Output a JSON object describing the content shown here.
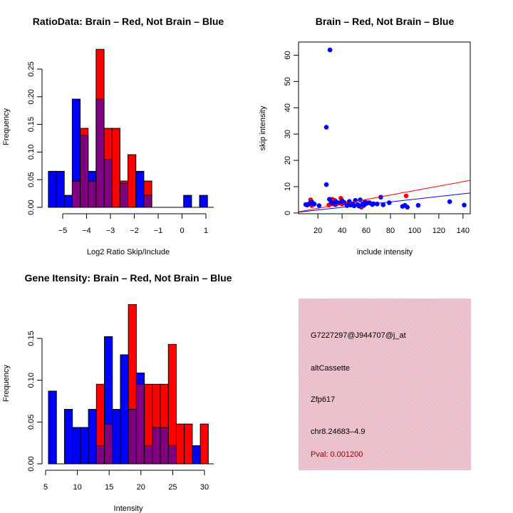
{
  "colors": {
    "brain": "#ff0000",
    "not_brain": "#0000ff",
    "overlap": "#800080",
    "panel": "#ecbfcb",
    "pval": "#8b0000"
  },
  "chart_data": [
    {
      "id": "ratio_hist",
      "type": "bar",
      "title": "RatioData: Brain – Red, Not Brain – Blue",
      "xlabel": "Log2 Ratio Skip/Include",
      "ylabel": "Frequency",
      "xlim": [
        -5.6,
        1.07
      ],
      "ylim": [
        0,
        0.28
      ],
      "xticks": [
        -5,
        -4,
        -3,
        -2,
        -1,
        0,
        1
      ],
      "xtick_labels": [
        "−5",
        "−4",
        "−3",
        "−2",
        "−1",
        "0",
        "1"
      ],
      "yticks": [
        0.0,
        0.05,
        0.1,
        0.15,
        0.2,
        0.25
      ],
      "ytick_labels": [
        "0.00",
        "0.05",
        "0.10",
        "0.15",
        "0.20",
        "0.25"
      ],
      "bin_start": -5.6,
      "bin_width": 0.3333,
      "series": [
        {
          "name": "Not Brain (Blue)",
          "values": [
            0.0652,
            0.0652,
            0.0217,
            0.1957,
            0.1304,
            0.0652,
            0.1957,
            0.087,
            0.0,
            0.0435,
            0.0,
            0.0652,
            0.0217,
            0.0,
            0.0,
            0.0,
            0.0,
            0.0217,
            0.0,
            0.0217
          ]
        },
        {
          "name": "Brain (Red)",
          "values": [
            0.0,
            0.0,
            0.0,
            0.0476,
            0.1429,
            0.0476,
            0.2857,
            0.1429,
            0.1429,
            0.0476,
            0.0952,
            0.0,
            0.0476,
            0.0,
            0.0,
            0.0,
            0.0,
            0.0,
            0.0,
            0.0
          ]
        }
      ],
      "grid": false
    },
    {
      "id": "scatter",
      "type": "scatter",
      "title": "Brain – Red, Not Brain – Blue",
      "xlabel": "include intensity",
      "ylabel": "skip intensity",
      "xlim": [
        4,
        146
      ],
      "ylim": [
        -0.3,
        65
      ],
      "xticks": [
        20,
        40,
        60,
        80,
        100,
        120,
        140
      ],
      "yticks": [
        0,
        10,
        20,
        30,
        40,
        50,
        60
      ],
      "series": [
        {
          "name": "Not Brain (Blue)",
          "points": [
            [
              10,
              3.2
            ],
            [
              11,
              3.0
            ],
            [
              12,
              3.3
            ],
            [
              13,
              3.5
            ],
            [
              14,
              3.8
            ],
            [
              15,
              4.2
            ],
            [
              16,
              3.6
            ],
            [
              17,
              3.4
            ],
            [
              21,
              2.8
            ],
            [
              27,
              10.8
            ],
            [
              27,
              32.6
            ],
            [
              30,
              62
            ],
            [
              29.5,
              5.2
            ],
            [
              31,
              4.0
            ],
            [
              33,
              3.5
            ],
            [
              34,
              3.2
            ],
            [
              35,
              4.3
            ],
            [
              38,
              3.8
            ],
            [
              40,
              4.6
            ],
            [
              41,
              4.2
            ],
            [
              42,
              3.9
            ],
            [
              44,
              2.8
            ],
            [
              45,
              3.2
            ],
            [
              46,
              4.4
            ],
            [
              47,
              3.0
            ],
            [
              49,
              3.5
            ],
            [
              50,
              2.7
            ],
            [
              51,
              4.8
            ],
            [
              53,
              3.2
            ],
            [
              54,
              2.6
            ],
            [
              55,
              5.0
            ],
            [
              57,
              3.4
            ],
            [
              58,
              2.9
            ],
            [
              59,
              4.2
            ],
            [
              60,
              3.6
            ],
            [
              63,
              3.8
            ],
            [
              65,
              3.2
            ],
            [
              66,
              3.5
            ],
            [
              69,
              3.4
            ],
            [
              72,
              6.0
            ],
            [
              74,
              3.1
            ],
            [
              79,
              3.9
            ],
            [
              90,
              2.5
            ],
            [
              92,
              2.9
            ],
            [
              94,
              2.2
            ],
            [
              103,
              2.9
            ],
            [
              129,
              4.3
            ],
            [
              141,
              3.0
            ]
          ]
        },
        {
          "name": "Brain (Red)",
          "points": [
            [
              14,
              5.0
            ],
            [
              15,
              2.8
            ],
            [
              29,
              3.0
            ],
            [
              31,
              3.5
            ],
            [
              32,
              5.2
            ],
            [
              34,
              4.8
            ],
            [
              35,
              3.2
            ],
            [
              36,
              4.0
            ],
            [
              39,
              5.6
            ],
            [
              40,
              3.4
            ],
            [
              56,
              2.2
            ],
            [
              62,
              4.0
            ],
            [
              93,
              6.5
            ]
          ]
        }
      ],
      "fit_lines": [
        {
          "name": "Brain fit (Red)",
          "from": [
            4,
            0.4
          ],
          "to": [
            146,
            12.4
          ]
        },
        {
          "name": "Not Brain fit (Blue)",
          "from": [
            4,
            0.3
          ],
          "to": [
            146,
            7.6
          ]
        }
      ],
      "grid": false
    },
    {
      "id": "intensity_hist",
      "type": "bar",
      "title": "Gene Itensity: Brain – Red, Not Brain – Blue",
      "xlabel": "Intensity",
      "ylabel": "Frequency",
      "xlim": [
        5.45,
        30.6
      ],
      "ylim": [
        0,
        0.2
      ],
      "xticks": [
        5,
        10,
        15,
        20,
        25,
        30
      ],
      "xtick_labels": [
        "5",
        "10",
        "15",
        "20",
        "25",
        "30"
      ],
      "yticks": [
        0.0,
        0.05,
        0.1,
        0.15
      ],
      "ytick_labels": [
        "0.00",
        "0.05",
        "0.10",
        "0.15"
      ],
      "bin_start": 5.45,
      "bin_width": 1.2575,
      "series": [
        {
          "name": "Not Brain (Blue)",
          "values": [
            0.087,
            0.0,
            0.0652,
            0.0435,
            0.0435,
            0.0652,
            0.0217,
            0.1522,
            0.0652,
            0.1304,
            0.0652,
            0.1087,
            0.0217,
            0.0435,
            0.0435,
            0.0217,
            0.0,
            0.0,
            0.0217,
            0.0
          ]
        },
        {
          "name": "Brain (Red)",
          "values": [
            0.0,
            0.0,
            0.0,
            0.0,
            0.0,
            0.0,
            0.0952,
            0.0476,
            0.0,
            0.0,
            0.1905,
            0.0952,
            0.0952,
            0.0952,
            0.0952,
            0.1429,
            0.0476,
            0.0476,
            0.0,
            0.0476
          ]
        }
      ],
      "grid": false
    }
  ],
  "info_panel": {
    "probe_id": "G7227297@J944707@j_at",
    "event_type": "altCassette",
    "gene": "Zfp617",
    "location": "chr8.24683–4.9",
    "pval": "Pval: 0.001200"
  }
}
